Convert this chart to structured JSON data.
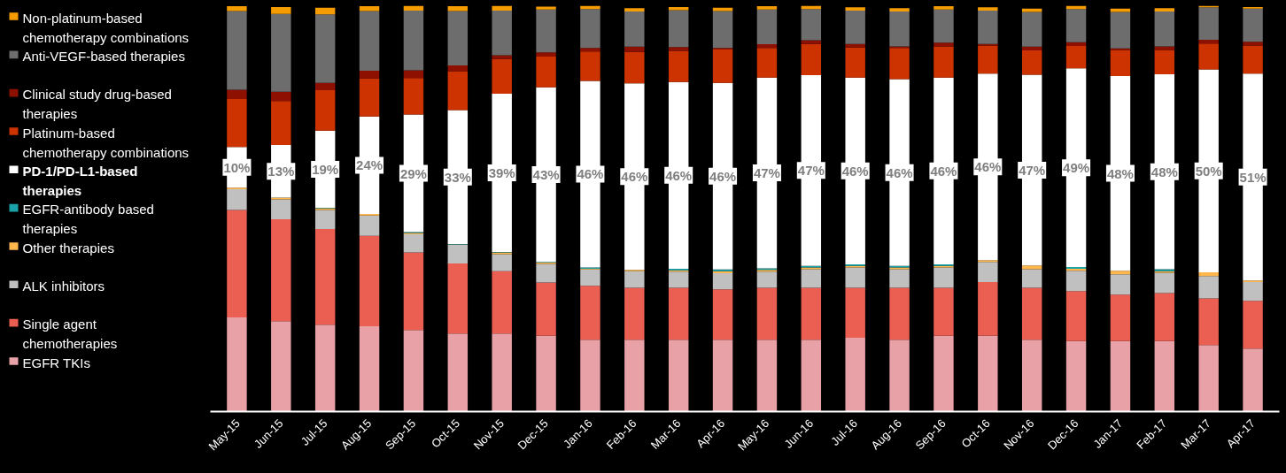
{
  "chart_data": {
    "type": "bar",
    "stacked": true,
    "legend": "left",
    "grid": false,
    "tick_labels": "x",
    "ylim": [
      0,
      100
    ],
    "categories": [
      "May-15",
      "Jun-15",
      "Jul-15",
      "Aug-15",
      "Sep-15",
      "Oct-15",
      "Nov-15",
      "Dec-15",
      "Jan-16",
      "Feb-16",
      "Mar-16",
      "Apr-16",
      "May-16",
      "Jun-16",
      "Jul-16",
      "Aug-16",
      "Sep-16",
      "Oct-16",
      "Nov-16",
      "Dec-16",
      "Jan-17",
      "Feb-17",
      "Mar-17",
      "Apr-17"
    ],
    "series": [
      {
        "name": "EGFR TKIs",
        "color": "#e8a1a6",
        "values": [
          23.2,
          22.3,
          21.4,
          21.0,
          20.1,
          19.2,
          19.2,
          18.7,
          17.7,
          17.7,
          17.7,
          17.7,
          17.7,
          17.7,
          18.2,
          17.7,
          18.7,
          18.7,
          17.7,
          17.4,
          17.4,
          17.4,
          16.4,
          15.5
        ]
      },
      {
        "name": "Single agent chemotherapies",
        "color": "#eb5f52",
        "values": [
          26.5,
          25.1,
          23.6,
          22.3,
          19.1,
          17.3,
          15.4,
          13.1,
          13.3,
          12.8,
          12.8,
          12.4,
          12.8,
          12.8,
          12.3,
          12.8,
          11.8,
          13.2,
          12.8,
          12.3,
          11.4,
          11.8,
          11.5,
          11.8
        ]
      },
      {
        "name": "ALK inhibitors",
        "color": "#c0c0c0",
        "values": [
          5.1,
          4.9,
          4.7,
          5.0,
          4.5,
          4.6,
          4.2,
          4.6,
          4.0,
          4.1,
          4.0,
          4.0,
          4.0,
          4.6,
          5.0,
          4.6,
          5.0,
          5.0,
          4.6,
          5.0,
          5.0,
          5.0,
          5.5,
          4.6
        ]
      },
      {
        "name": "Other therapies",
        "color": "#ffb74d",
        "values": [
          0.4,
          0.4,
          0.4,
          0.4,
          0.3,
          0.1,
          0.4,
          0.3,
          0.2,
          0.3,
          0.3,
          0.5,
          0.4,
          0.4,
          0.4,
          0.4,
          0.4,
          0.4,
          0.9,
          0.5,
          0.9,
          0.4,
          0.9,
          0.4
        ]
      },
      {
        "name": "EGFR-antibody based therapies",
        "color": "#1aa3a9",
        "values": [
          null,
          null,
          0.1,
          null,
          0.2,
          0.1,
          0.1,
          0.2,
          0.3,
          null,
          0.4,
          0.4,
          0.4,
          0.4,
          0.4,
          0.4,
          0.4,
          null,
          null,
          0.4,
          null,
          0.5,
          null,
          null
        ]
      },
      {
        "name": "PD-1/PD-L1-based therapies",
        "color": "#ffffff",
        "values": [
          10,
          13,
          19,
          24,
          29,
          33,
          39,
          43,
          46,
          46,
          46,
          46,
          47,
          47,
          46,
          46,
          46,
          46,
          47,
          49,
          48,
          48,
          50,
          51
        ],
        "value_labels": [
          "10%",
          "13%",
          "19%",
          "24%",
          "29%",
          "33%",
          "39%",
          "43%",
          "46%",
          "46%",
          "46%",
          "46%",
          "47%",
          "47%",
          "46%",
          "46%",
          "46%",
          "46%",
          "47%",
          "49%",
          "48%",
          "48%",
          "50%",
          "51%"
        ]
      },
      {
        "name": "Platinum-based chemotherapy combinations",
        "color": "#cc3300",
        "values": [
          11.8,
          10.8,
          10.0,
          9.4,
          9.0,
          9.6,
          8.6,
          7.6,
          7.2,
          7.7,
          7.7,
          8.2,
          7.3,
          7.7,
          7.4,
          7.7,
          7.7,
          6.9,
          6.0,
          5.5,
          6.4,
          6.0,
          6.4,
          6.9
        ]
      },
      {
        "name": "Clinical study drug-based therapies",
        "color": "#8e1000",
        "values": [
          2.3,
          2.3,
          1.8,
          1.9,
          1.9,
          1.4,
          0.9,
          1.0,
          0.9,
          1.3,
          0.9,
          0.4,
          0.9,
          0.9,
          0.9,
          0.4,
          0.9,
          0.4,
          0.9,
          0.9,
          0.4,
          0.9,
          0.9,
          0.9
        ]
      },
      {
        "name": "Anti-VEGF-based therapies",
        "color": "#6d6d6d",
        "values": [
          19.4,
          19.2,
          16.9,
          14.7,
          14.7,
          13.4,
          11.0,
          10.6,
          9.6,
          8.7,
          9.1,
          9.1,
          8.6,
          7.7,
          8.2,
          8.6,
          8.2,
          8.2,
          8.6,
          8.2,
          9.0,
          8.6,
          8.0,
          8.2
        ]
      },
      {
        "name": "Non-platinum-based chemotherapy combinations",
        "color": "#f59c00",
        "values": [
          1.2,
          1.7,
          1.6,
          1.2,
          1.2,
          1.2,
          1.2,
          0.7,
          0.8,
          0.8,
          0.8,
          0.8,
          0.8,
          0.8,
          0.8,
          0.8,
          0.8,
          0.8,
          0.8,
          0.8,
          0.8,
          0.8,
          0.4,
          0.4
        ]
      }
    ]
  }
}
